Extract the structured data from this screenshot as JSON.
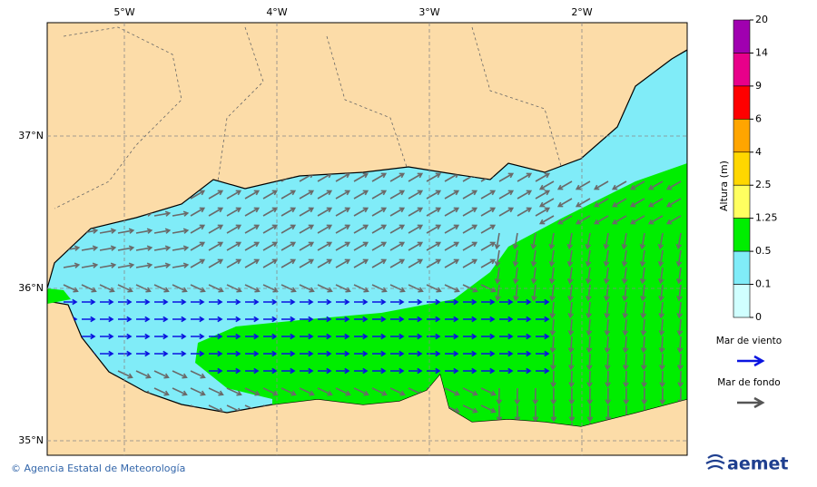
{
  "map": {
    "x_labels": [
      "5°W",
      "4°W",
      "3°W",
      "2°W"
    ],
    "y_labels": [
      "37°N",
      "36°N",
      "35°N"
    ]
  },
  "colorbar": {
    "title": "Altura (m)",
    "levels": [
      20,
      14,
      9,
      6,
      4,
      2.5,
      1.25,
      0.5,
      0.1,
      0
    ],
    "colors": [
      "#a000b0",
      "#e8008a",
      "#ff0000",
      "#ffa500",
      "#ffd700",
      "#ffff60",
      "#00ee00",
      "#80ecf8",
      "#d0ffff"
    ]
  },
  "legend": {
    "items": [
      {
        "label": "Mar de viento",
        "color": "#0a14e0"
      },
      {
        "label": "Mar de fondo",
        "color": "#555555"
      }
    ]
  },
  "footer": {
    "credit": "© Agencia Estatal de Meteorología",
    "logo": "aemet"
  }
}
